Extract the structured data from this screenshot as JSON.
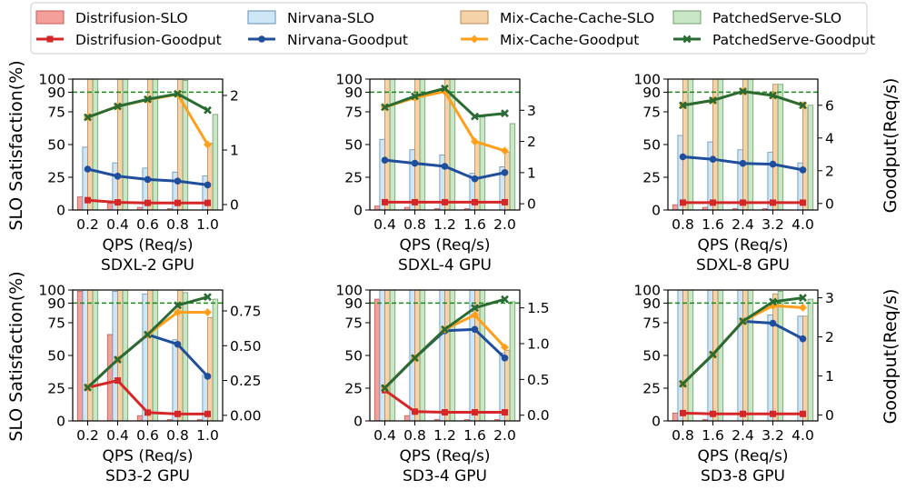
{
  "legend": [
    {
      "label": "Distrifusion-SLO",
      "kind": "bar",
      "color": "#f4a09a",
      "edge": "#c95a54"
    },
    {
      "label": "Nirvana-SLO",
      "kind": "bar",
      "color": "#cfe6f7",
      "edge": "#5f8fb5"
    },
    {
      "label": "Mix-Cache-Cache-SLO",
      "kind": "bar",
      "color": "#f5d2a8",
      "edge": "#b8895a"
    },
    {
      "label": "PatchedServe-SLO",
      "kind": "bar",
      "color": "#c9e6c7",
      "edge": "#6f9e6b"
    },
    {
      "label": "Distrifusion-Goodput",
      "kind": "line",
      "color": "#d62728",
      "marker": "square"
    },
    {
      "label": "Nirvana-Goodput",
      "kind": "line",
      "color": "#1f4e9c",
      "marker": "circle"
    },
    {
      "label": "Mix-Cache-Goodput",
      "kind": "line",
      "color": "#ff9f1c",
      "marker": "diamond"
    },
    {
      "label": "PatchedServe-Goodput",
      "kind": "line",
      "color": "#2a6b34",
      "marker": "x"
    }
  ],
  "shared_labels": {
    "left_ylabel": "SLO Satisfaction(%)",
    "right_ylabel": "Goodput(Req/s)",
    "xlabel": "QPS (Req/s)",
    "slo_yticks": [
      "0",
      "25",
      "50",
      "75",
      "90",
      "100"
    ],
    "slo_ref_line": 90
  },
  "chart_data": [
    {
      "type": "bar+line",
      "title": "SDXL-2 GPU",
      "categories": [
        "0.2",
        "0.4",
        "0.6",
        "0.8",
        "1.0"
      ],
      "slo_series": [
        {
          "name": "Distrifusion-SLO",
          "values": [
            10,
            5,
            2,
            1,
            0
          ]
        },
        {
          "name": "Nirvana-SLO",
          "values": [
            48,
            36,
            32,
            29,
            26
          ]
        },
        {
          "name": "Mix-Cache-Cache-SLO",
          "values": [
            100,
            100,
            100,
            100,
            51
          ]
        },
        {
          "name": "PatchedServe-SLO",
          "values": [
            100,
            100,
            100,
            99,
            73
          ]
        }
      ],
      "goodput_series": [
        {
          "name": "Distrifusion-Goodput",
          "values": [
            0.08,
            0.04,
            0.03,
            0.03,
            0.03
          ]
        },
        {
          "name": "Nirvana-Goodput",
          "values": [
            0.65,
            0.52,
            0.46,
            0.43,
            0.36
          ]
        },
        {
          "name": "Mix-Cache-Goodput",
          "values": [
            1.6,
            1.8,
            1.92,
            2.02,
            1.1
          ]
        },
        {
          "name": "PatchedServe-Goodput",
          "values": [
            1.6,
            1.8,
            1.93,
            2.03,
            1.73
          ]
        }
      ],
      "y2lim": [
        -0.1,
        2.3
      ],
      "y2ticks": [
        "0",
        "1",
        "2"
      ]
    },
    {
      "type": "bar+line",
      "title": "SDXL-4 GPU",
      "categories": [
        "0.4",
        "0.8",
        "1.2",
        "1.6",
        "2.0"
      ],
      "slo_series": [
        {
          "name": "Distrifusion-SLO",
          "values": [
            3,
            2,
            1,
            1,
            0
          ]
        },
        {
          "name": "Nirvana-SLO",
          "values": [
            54,
            46,
            42,
            28,
            33
          ]
        },
        {
          "name": "Mix-Cache-Cache-SLO",
          "values": [
            100,
            100,
            100,
            52,
            44
          ]
        },
        {
          "name": "PatchedServe-SLO",
          "values": [
            100,
            100,
            100,
            71,
            66
          ]
        }
      ],
      "goodput_series": [
        {
          "name": "Distrifusion-Goodput",
          "values": [
            0.05,
            0.05,
            0.05,
            0.05,
            0.05
          ]
        },
        {
          "name": "Nirvana-Goodput",
          "values": [
            1.4,
            1.3,
            1.2,
            0.8,
            1.0
          ]
        },
        {
          "name": "Mix-Cache-Goodput",
          "values": [
            3.1,
            3.4,
            3.6,
            2.0,
            1.7
          ]
        },
        {
          "name": "PatchedServe-Goodput",
          "values": [
            3.1,
            3.45,
            3.7,
            2.8,
            2.9
          ]
        }
      ],
      "y2lim": [
        -0.2,
        4.0
      ],
      "y2ticks": [
        "0",
        "1",
        "2",
        "3"
      ]
    },
    {
      "type": "bar+line",
      "title": "SDXL-8 GPU",
      "categories": [
        "0.8",
        "1.6",
        "2.4",
        "3.2",
        "4.0"
      ],
      "slo_series": [
        {
          "name": "Distrifusion-SLO",
          "values": [
            4,
            2,
            1,
            1,
            0
          ]
        },
        {
          "name": "Nirvana-SLO",
          "values": [
            57,
            52,
            46,
            44,
            36
          ]
        },
        {
          "name": "Mix-Cache-Cache-SLO",
          "values": [
            100,
            100,
            100,
            96,
            78
          ]
        },
        {
          "name": "PatchedServe-SLO",
          "values": [
            100,
            100,
            100,
            96,
            80
          ]
        }
      ],
      "goodput_series": [
        {
          "name": "Distrifusion-Goodput",
          "values": [
            0.05,
            0.05,
            0.05,
            0.05,
            0.05
          ]
        },
        {
          "name": "Nirvana-Goodput",
          "values": [
            2.85,
            2.7,
            2.45,
            2.4,
            2.05
          ]
        },
        {
          "name": "Mix-Cache-Goodput",
          "values": [
            6.0,
            6.3,
            6.85,
            6.6,
            6.0
          ]
        },
        {
          "name": "PatchedServe-Goodput",
          "values": [
            6.0,
            6.3,
            6.85,
            6.6,
            6.0
          ]
        }
      ],
      "y2lim": [
        -0.4,
        7.6
      ],
      "y2ticks": [
        "0",
        "2",
        "4",
        "6"
      ]
    },
    {
      "type": "bar+line",
      "title": "SD3-2 GPU",
      "categories": [
        "0.2",
        "0.4",
        "0.6",
        "0.8",
        "1.0"
      ],
      "slo_series": [
        {
          "name": "Distrifusion-SLO",
          "values": [
            99,
            66,
            4,
            1,
            1
          ]
        },
        {
          "name": "Nirvana-SLO",
          "values": [
            100,
            99,
            97,
            62,
            35
          ]
        },
        {
          "name": "Mix-Cache-Cache-SLO",
          "values": [
            100,
            100,
            100,
            100,
            79
          ]
        },
        {
          "name": "PatchedServe-SLO",
          "values": [
            100,
            100,
            100,
            98,
            93
          ]
        }
      ],
      "goodput_series": [
        {
          "name": "Distrifusion-Goodput",
          "values": [
            0.2,
            0.25,
            0.02,
            0.01,
            0.01
          ]
        },
        {
          "name": "Nirvana-Goodput",
          "values": [
            0.2,
            0.4,
            0.58,
            0.51,
            0.28
          ]
        },
        {
          "name": "Mix-Cache-Goodput",
          "values": [
            0.2,
            0.4,
            0.58,
            0.74,
            0.74
          ]
        },
        {
          "name": "PatchedServe-Goodput",
          "values": [
            0.2,
            0.4,
            0.58,
            0.79,
            0.85
          ]
        }
      ],
      "y2lim": [
        -0.04,
        0.9
      ],
      "y2ticks": [
        "0.00",
        "0.25",
        "0.50",
        "0.75"
      ]
    },
    {
      "type": "bar+line",
      "title": "SD3-4 GPU",
      "categories": [
        "0.4",
        "0.8",
        "1.2",
        "1.6",
        "2.0"
      ],
      "slo_series": [
        {
          "name": "Distrifusion-SLO",
          "values": [
            93,
            4,
            1,
            1,
            1
          ]
        },
        {
          "name": "Nirvana-SLO",
          "values": [
            100,
            100,
            100,
            100,
            52
          ]
        },
        {
          "name": "Mix-Cache-Cache-SLO",
          "values": [
            100,
            100,
            100,
            100,
            54
          ]
        },
        {
          "name": "PatchedServe-SLO",
          "values": [
            100,
            100,
            100,
            100,
            91
          ]
        }
      ],
      "goodput_series": [
        {
          "name": "Distrifusion-Goodput",
          "values": [
            0.35,
            0.05,
            0.04,
            0.04,
            0.04
          ]
        },
        {
          "name": "Nirvana-Goodput",
          "values": [
            0.38,
            0.8,
            1.18,
            1.2,
            0.8
          ]
        },
        {
          "name": "Mix-Cache-Goodput",
          "values": [
            0.38,
            0.8,
            1.2,
            1.4,
            0.95
          ]
        },
        {
          "name": "PatchedServe-Goodput",
          "values": [
            0.38,
            0.8,
            1.2,
            1.5,
            1.62
          ]
        }
      ],
      "y2lim": [
        -0.08,
        1.75
      ],
      "y2ticks": [
        "0.0",
        "0.5",
        "1.0",
        "1.5"
      ]
    },
    {
      "type": "bar+line",
      "title": "SD3-8 GPU",
      "categories": [
        "0.8",
        "1.6",
        "2.4",
        "3.2",
        "4.0"
      ],
      "slo_series": [
        {
          "name": "Distrifusion-SLO",
          "values": [
            6,
            1,
            0,
            0,
            0
          ]
        },
        {
          "name": "Nirvana-SLO",
          "values": [
            100,
            100,
            100,
            81,
            80
          ]
        },
        {
          "name": "Mix-Cache-Cache-SLO",
          "values": [
            100,
            100,
            100,
            97,
            80
          ]
        },
        {
          "name": "PatchedServe-SLO",
          "values": [
            100,
            100,
            100,
            99,
            93
          ]
        }
      ],
      "goodput_series": [
        {
          "name": "Distrifusion-Goodput",
          "values": [
            0.05,
            0.03,
            0.03,
            0.03,
            0.03
          ]
        },
        {
          "name": "Nirvana-Goodput",
          "values": [
            0.8,
            1.55,
            2.4,
            2.35,
            1.95
          ]
        },
        {
          "name": "Mix-Cache-Goodput",
          "values": [
            0.8,
            1.55,
            2.4,
            2.8,
            2.75
          ]
        },
        {
          "name": "PatchedServe-Goodput",
          "values": [
            0.8,
            1.55,
            2.4,
            2.9,
            3.0
          ]
        }
      ],
      "y2lim": [
        -0.15,
        3.2
      ],
      "y2ticks": [
        "0",
        "1",
        "2",
        "3"
      ]
    }
  ]
}
